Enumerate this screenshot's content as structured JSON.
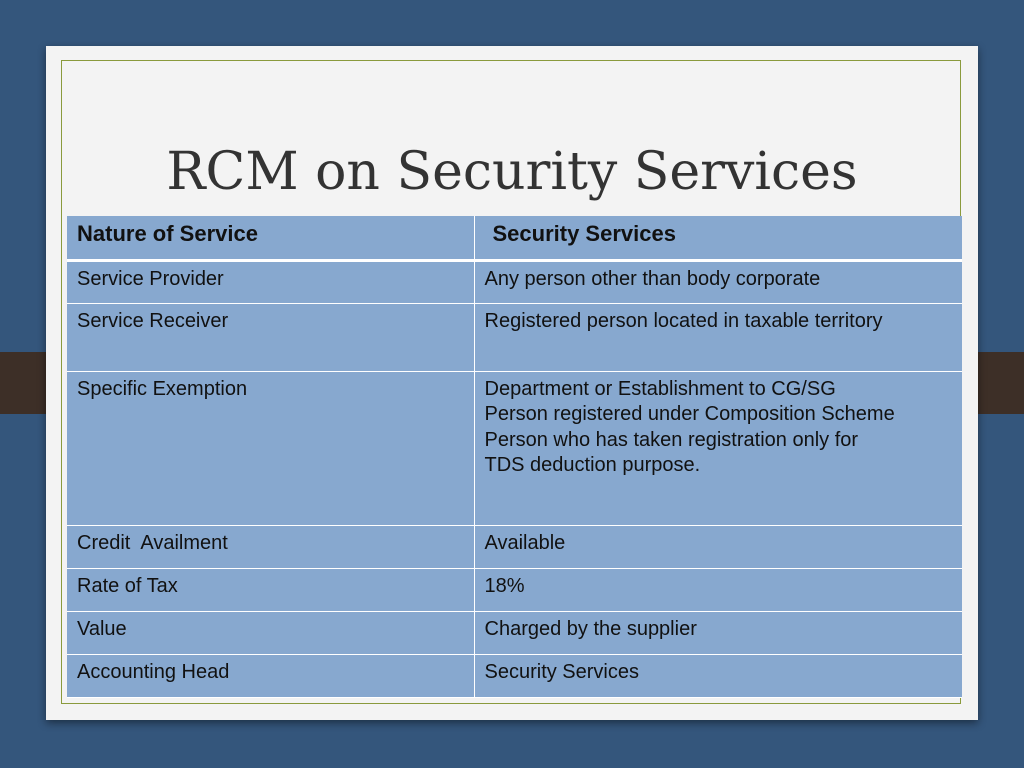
{
  "slide": {
    "title": "RCM on Security Services",
    "table": {
      "headers": [
        "Nature of Service",
        "Security Services"
      ],
      "rows": [
        {
          "label": "Service Provider",
          "value": [
            "Any person other than body corporate"
          ]
        },
        {
          "label": "Service Receiver",
          "value": [
            "Registered person located in taxable territory"
          ]
        },
        {
          "label": "Specific Exemption",
          "value": [
            "Department or Establishment to CG/SG",
            "Person registered under Composition Scheme",
            "Person who has taken registration only for",
            "TDS deduction purpose."
          ]
        },
        {
          "label": "Credit  Availment",
          "value": [
            "Available"
          ]
        },
        {
          "label": "Rate of Tax",
          "value": [
            "18%"
          ]
        },
        {
          "label": "Value",
          "value": [
            "Charged by the supplier"
          ]
        },
        {
          "label": "Accounting Head",
          "value": [
            "Security Services"
          ]
        }
      ]
    }
  }
}
